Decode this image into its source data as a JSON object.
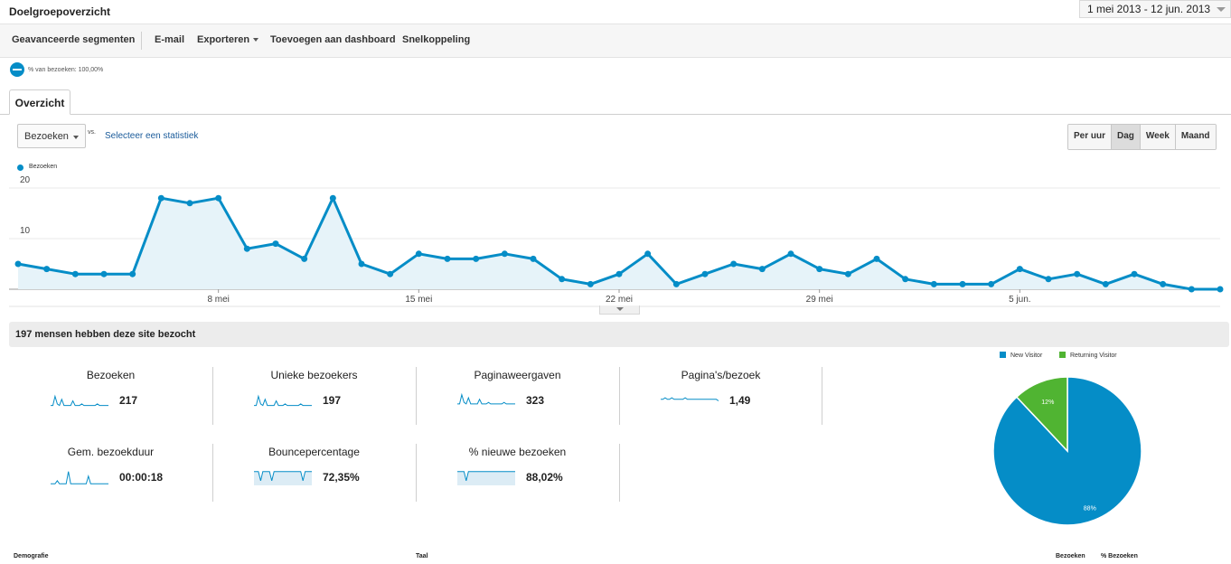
{
  "header": {
    "title": "Doelgroepoverzicht",
    "date_range": "1 mei 2013 - 12 jun. 2013"
  },
  "toolbar": {
    "advanced_segments": "Geavanceerde segmenten",
    "email": "E-mail",
    "export": "Exporteren",
    "add_to_dashboard": "Toevoegen aan dashboard",
    "shortcut": "Snelkoppeling"
  },
  "segment": {
    "label": "% van bezoeken: 100,00%"
  },
  "tabs": {
    "overview": "Overzicht"
  },
  "controls": {
    "metric": "Bezoeken",
    "vs": "vs.",
    "select_statistic": "Selecteer een statistiek",
    "periods": [
      "Per uur",
      "Dag",
      "Week",
      "Maand"
    ],
    "active_period": "Dag"
  },
  "colors": {
    "accent": "#058dc7",
    "fill": "#e6f3f9",
    "green": "#50b432",
    "grid": "#e8e8e8"
  },
  "chart_data": {
    "type": "area",
    "series": [
      {
        "name": "Bezoeken",
        "values": [
          5,
          4,
          3,
          3,
          3,
          18,
          17,
          18,
          8,
          9,
          6,
          18,
          5,
          3,
          7,
          6,
          6,
          7,
          6,
          2,
          1,
          3,
          7,
          1,
          3,
          5,
          4,
          7,
          4,
          3,
          6,
          2,
          1,
          1,
          1,
          4,
          2,
          3,
          1,
          3,
          1,
          0,
          0
        ]
      }
    ],
    "x_tick_labels": [
      "8 mei",
      "15 mei",
      "22 mei",
      "29 mei",
      "5 jun."
    ],
    "x_tick_index": [
      7,
      14,
      21,
      28,
      35
    ],
    "y_ticks": [
      10,
      20
    ],
    "ylim": [
      0,
      20
    ],
    "legend": "top-left",
    "grid": true
  },
  "summary": {
    "title": "197 mensen hebben deze site bezocht"
  },
  "stats": [
    {
      "label": "Bezoeken",
      "value": "217"
    },
    {
      "label": "Unieke bezoekers",
      "value": "197"
    },
    {
      "label": "Paginaweergaven",
      "value": "323"
    },
    {
      "label": "Pagina's/bezoek",
      "value": "1,49"
    },
    {
      "label": "Gem. bezoekduur",
      "value": "00:00:18"
    },
    {
      "label": "Bouncepercentage",
      "value": "72,35%"
    },
    {
      "label": "% nieuwe bezoeken",
      "value": "88,02%"
    }
  ],
  "pie": {
    "legend_new": "New Visitor",
    "legend_returning": "Returning Visitor",
    "slices": [
      {
        "name": "New Visitor",
        "value": 88,
        "label": "88%",
        "color": "#058dc7"
      },
      {
        "name": "Returning Visitor",
        "value": 12,
        "label": "12%",
        "color": "#50b432"
      }
    ]
  },
  "table_headers": {
    "demographics": "Demografie",
    "language": "Taal",
    "visits": "Bezoeken",
    "percent_visits": "% Bezoeken"
  }
}
